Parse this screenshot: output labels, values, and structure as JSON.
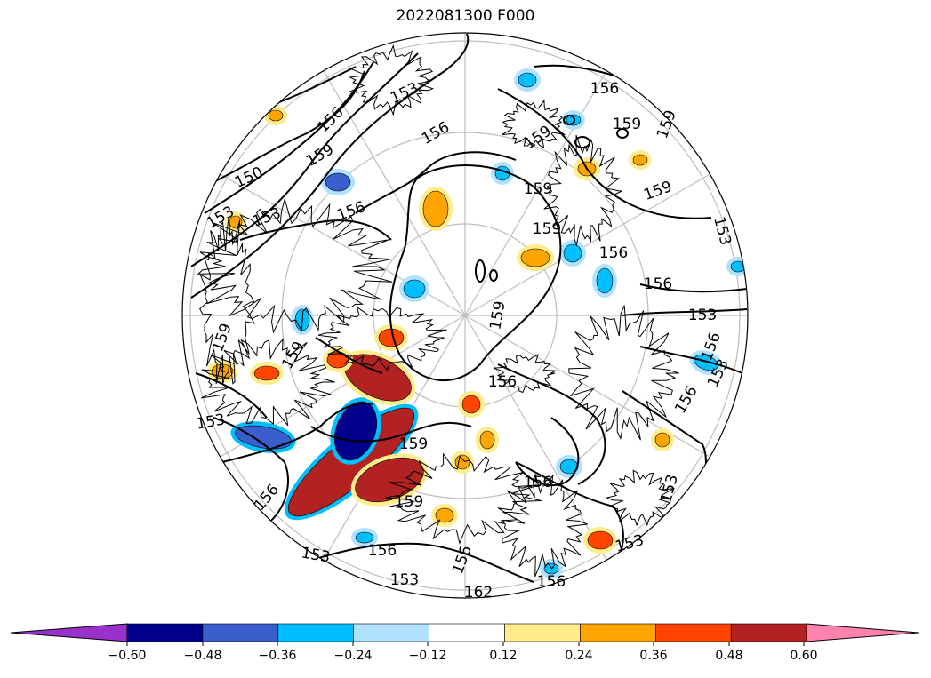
{
  "title": "2022081300 F000",
  "map": {
    "projection": "north-polar-stereographic",
    "coastlines": true,
    "graticule": {
      "parallels": 4,
      "meridians": 12
    },
    "contour_color": "#000000",
    "contour_labels": [
      "150",
      "153",
      "153",
      "153",
      "153",
      "153",
      "153",
      "153",
      "153",
      "153",
      "153",
      "156",
      "156",
      "156",
      "156",
      "156",
      "156",
      "156",
      "156",
      "156",
      "156",
      "156",
      "156",
      "159",
      "159",
      "159",
      "159",
      "159",
      "159",
      "159",
      "159",
      "159",
      "159",
      "159",
      "159",
      "162",
      "156",
      "153",
      "156"
    ]
  },
  "colorbar": {
    "extend": "both",
    "bins": [
      {
        "color": "#9932cc"
      },
      {
        "color": "#00008b"
      },
      {
        "color": "#3a5fcd"
      },
      {
        "color": "#00bfff"
      },
      {
        "color": "#b0e2ff"
      },
      {
        "color": "#ffffff"
      },
      {
        "color": "#ffec8b"
      },
      {
        "color": "#ffa500"
      },
      {
        "color": "#ff4500"
      },
      {
        "color": "#b22222"
      },
      {
        "color": "#ff82ab"
      }
    ],
    "tick_labels": [
      "−0.60",
      "−0.48",
      "−0.36",
      "−0.24",
      "−0.12",
      "0.12",
      "0.24",
      "0.36",
      "0.48",
      "0.60"
    ]
  }
}
